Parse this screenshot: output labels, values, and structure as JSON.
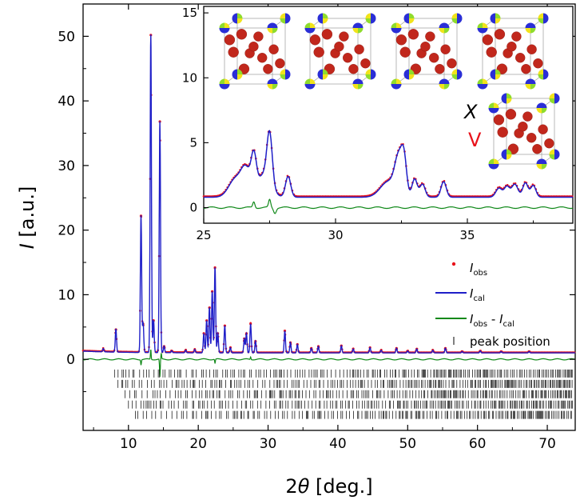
{
  "chart_data": [
    {
      "type": "line",
      "xlabel": {
        "prefix": "2",
        "symbol": "θ",
        "unit": " [deg.]"
      },
      "ylabel": {
        "symbol": "I",
        "unit": " [a.u.]"
      },
      "xlim": [
        3.5,
        74
      ],
      "ylim": [
        -11,
        55
      ],
      "x_ticks": [
        10,
        20,
        30,
        40,
        50,
        60,
        70
      ],
      "y_ticks": [
        0,
        10,
        20,
        30,
        40,
        50
      ],
      "background_level": 1.0,
      "peaks": [
        {
          "x": 6.4,
          "y": 1.5
        },
        {
          "x": 8.2,
          "y": 4.6
        },
        {
          "x": 11.8,
          "y": 22.2
        },
        {
          "x": 12.1,
          "y": 5.5
        },
        {
          "x": 13.2,
          "y": 50.2
        },
        {
          "x": 13.6,
          "y": 6.0
        },
        {
          "x": 14.5,
          "y": 36.8
        },
        {
          "x": 15.1,
          "y": 2.0
        },
        {
          "x": 16.2,
          "y": 1.3
        },
        {
          "x": 18.2,
          "y": 1.4
        },
        {
          "x": 19.5,
          "y": 1.5
        },
        {
          "x": 20.8,
          "y": 4.0
        },
        {
          "x": 21.2,
          "y": 6.0
        },
        {
          "x": 21.6,
          "y": 8.0
        },
        {
          "x": 22.0,
          "y": 10.5
        },
        {
          "x": 22.4,
          "y": 14.2
        },
        {
          "x": 22.8,
          "y": 4.0
        },
        {
          "x": 23.8,
          "y": 5.2
        },
        {
          "x": 24.6,
          "y": 1.8
        },
        {
          "x": 26.6,
          "y": 3.2
        },
        {
          "x": 26.9,
          "y": 4.0
        },
        {
          "x": 27.5,
          "y": 5.5
        },
        {
          "x": 28.2,
          "y": 2.8
        },
        {
          "x": 32.4,
          "y": 4.4
        },
        {
          "x": 33.2,
          "y": 2.6
        },
        {
          "x": 34.2,
          "y": 2.3
        },
        {
          "x": 36.2,
          "y": 1.7
        },
        {
          "x": 37.2,
          "y": 2.0
        },
        {
          "x": 40.5,
          "y": 2.1
        },
        {
          "x": 42.2,
          "y": 1.6
        },
        {
          "x": 44.6,
          "y": 1.8
        },
        {
          "x": 46.2,
          "y": 1.4
        },
        {
          "x": 48.4,
          "y": 1.7
        },
        {
          "x": 50.0,
          "y": 1.3
        },
        {
          "x": 51.3,
          "y": 1.6
        },
        {
          "x": 53.6,
          "y": 1.4
        },
        {
          "x": 55.4,
          "y": 1.7
        },
        {
          "x": 57.8,
          "y": 1.2
        },
        {
          "x": 60.4,
          "y": 1.3
        },
        {
          "x": 63.4,
          "y": 1.2
        },
        {
          "x": 67.4,
          "y": 1.2
        }
      ],
      "difference_spikes": [
        {
          "x": 11.8,
          "y": -0.8
        },
        {
          "x": 13.2,
          "y": 1.5
        },
        {
          "x": 14.5,
          "y": -2.8
        },
        {
          "x": 14.7,
          "y": 0.8
        },
        {
          "x": 22.4,
          "y": -0.6
        },
        {
          "x": 27.5,
          "y": 0.4
        }
      ],
      "series": [
        {
          "name": "obs",
          "color": "#e8121b",
          "marker": "dot"
        },
        {
          "name": "cal",
          "color": "#1f1fc8",
          "marker": "line"
        },
        {
          "name": "obs - cal",
          "color": "#11891a",
          "marker": "line"
        }
      ],
      "tick_rows": [
        {
          "y": -2.2,
          "start": 8.0
        },
        {
          "y": -3.8,
          "start": 8.5
        },
        {
          "y": -5.4,
          "start": 9.5
        },
        {
          "y": -7.0,
          "start": 10.0
        },
        {
          "y": -8.6,
          "start": 11.0
        }
      ],
      "legend": {
        "position": "right",
        "entries": [
          {
            "base": "I",
            "sub": "obs"
          },
          {
            "base": "I",
            "sub": "cal"
          },
          {
            "base": "I",
            "sub": "obs",
            "minus": " - ",
            "base2": "I",
            "sub2": "cal"
          },
          {
            "text": "peak position"
          }
        ]
      }
    },
    {
      "type": "line",
      "inset": true,
      "xlim": [
        25,
        39
      ],
      "ylim": [
        -1.2,
        15.5
      ],
      "x_ticks": [
        25,
        30,
        35
      ],
      "y_ticks": [
        0,
        5,
        10,
        15
      ]
    }
  ],
  "annotations": {
    "x_label": "X",
    "v_label": "V"
  },
  "colors": {
    "oxygen": "#c1271c",
    "site_blue": "#2a2ed6",
    "site_green": "#8fdc2c",
    "site_yellow": "#f1e31b",
    "cell_edge": "#9a9a9a"
  }
}
